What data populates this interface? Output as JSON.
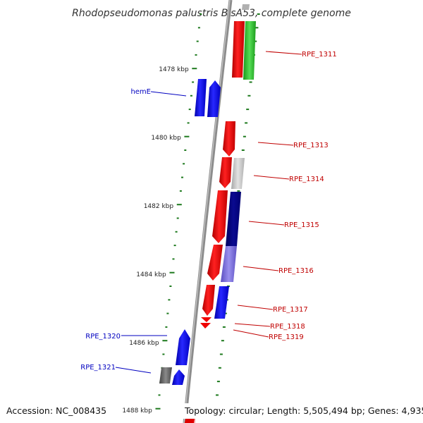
{
  "title": "Rhodopseudomonas palustris BisA53, complete genome",
  "footer": {
    "accession": "Accession: NC_008435",
    "topology": "Topology: circular; Length: 5,505,494 bp; Genes: 4,935"
  },
  "colors": {
    "backbone": "#8c8c8c",
    "tick": "#1e7a1e",
    "label_right": "#c00000",
    "label_left": "#0000c0"
  },
  "scale_labels": [
    "1478 kbp",
    "1480 kbp",
    "1482 kbp",
    "1484 kbp",
    "1486 kbp",
    "1488 kbp"
  ],
  "gene_labels": {
    "right": [
      "RPE_1311",
      "RPE_1313",
      "RPE_1314",
      "RPE_1315",
      "RPE_1316",
      "RPE_1317",
      "RPE_1318",
      "RPE_1319"
    ],
    "left": [
      "hemE",
      "RPE_1320",
      "RPE_1321"
    ]
  }
}
